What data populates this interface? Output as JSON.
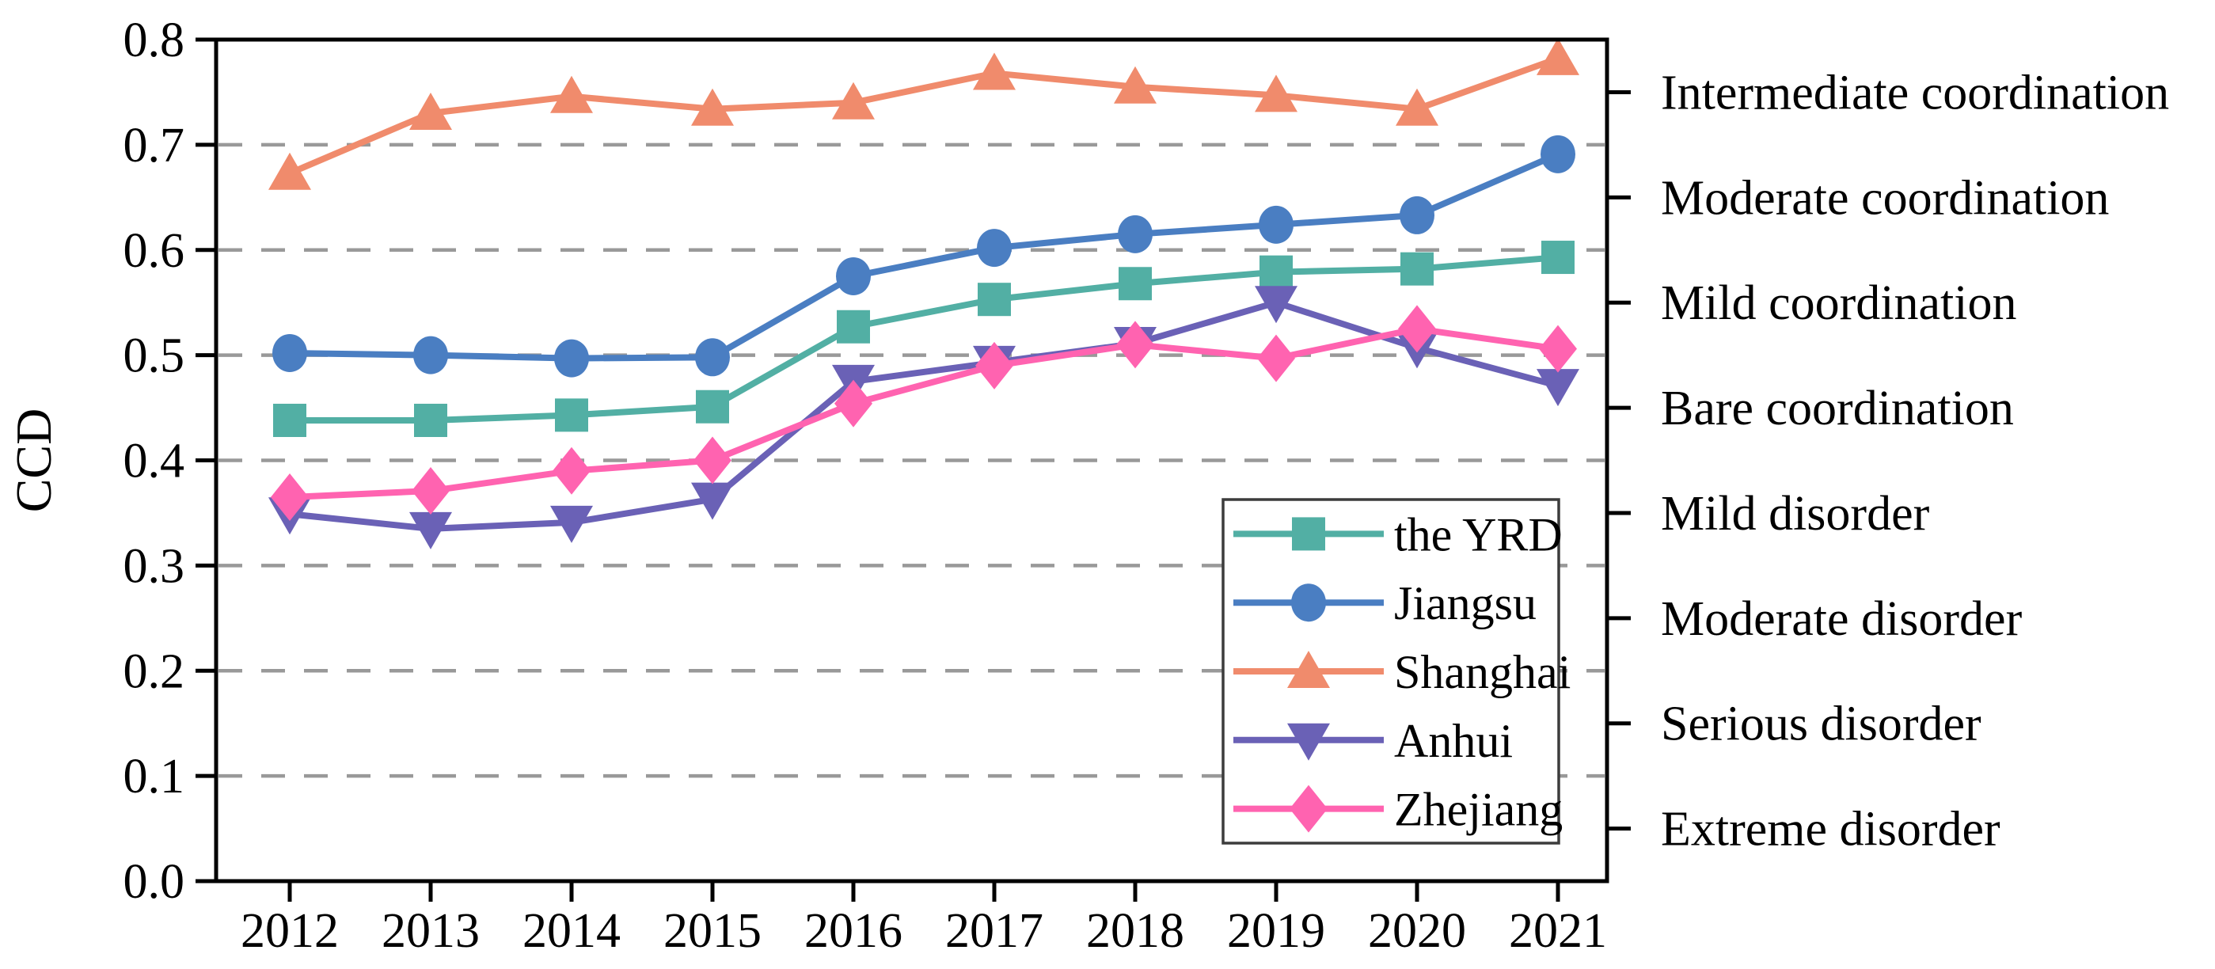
{
  "page": {
    "background": "#ffffff"
  },
  "colors": {
    "axis": "#000000",
    "grid": "#999999",
    "legend_border": "#3c3c3c",
    "yrd": "#52afa4",
    "jiangsu": "#4a7ec2",
    "shanghai": "#f08b6c",
    "anhui": "#6a61b6",
    "zhejiang": "#ff63b0"
  },
  "chart_data": {
    "type": "line",
    "title": "",
    "xlabel": "",
    "ylabel": "CCD",
    "x": [
      2012,
      2013,
      2014,
      2015,
      2016,
      2017,
      2018,
      2019,
      2020,
      2021
    ],
    "x_tick_labels": [
      "2012",
      "2013",
      "2014",
      "2015",
      "2016",
      "2017",
      "2018",
      "2019",
      "2020",
      "2021"
    ],
    "ylim": [
      0.0,
      0.8
    ],
    "y_ticks": [
      0.0,
      0.1,
      0.2,
      0.3,
      0.4,
      0.5,
      0.6,
      0.7,
      0.8
    ],
    "y_tick_labels": [
      "0.0",
      "0.1",
      "0.2",
      "0.3",
      "0.4",
      "0.5",
      "0.6",
      "0.7",
      "0.8"
    ],
    "grid": {
      "horizontal": true,
      "style": "dashed",
      "color": "#999999",
      "at": [
        0.1,
        0.2,
        0.3,
        0.4,
        0.5,
        0.6,
        0.7
      ]
    },
    "legend_position": "inside lower right",
    "series": [
      {
        "name": "the YRD",
        "marker": "square",
        "color": "#52afa4",
        "values": [
          0.438,
          0.438,
          0.443,
          0.451,
          0.527,
          0.553,
          0.568,
          0.579,
          0.582,
          0.593
        ]
      },
      {
        "name": "Jiangsu",
        "marker": "circle",
        "color": "#4a7ec2",
        "values": [
          0.502,
          0.5,
          0.497,
          0.498,
          0.575,
          0.602,
          0.615,
          0.624,
          0.633,
          0.691
        ]
      },
      {
        "name": "Shanghai",
        "marker": "triangle-up",
        "color": "#f08b6c",
        "values": [
          0.673,
          0.73,
          0.746,
          0.734,
          0.74,
          0.768,
          0.755,
          0.747,
          0.734,
          0.782
        ]
      },
      {
        "name": "Anhui",
        "marker": "triangle-down",
        "color": "#6a61b6",
        "values": [
          0.349,
          0.335,
          0.341,
          0.363,
          0.475,
          0.493,
          0.511,
          0.55,
          0.507,
          0.471
        ]
      },
      {
        "name": "Zhejiang",
        "marker": "diamond",
        "color": "#ff63b0",
        "values": [
          0.365,
          0.371,
          0.39,
          0.4,
          0.454,
          0.49,
          0.51,
          0.497,
          0.525,
          0.506
        ]
      }
    ],
    "right_axis_labels": [
      {
        "text": "Intermediate coordination",
        "value": 0.75
      },
      {
        "text": "Moderate coordination",
        "value": 0.65
      },
      {
        "text": "Mild coordination",
        "value": 0.55
      },
      {
        "text": "Bare coordination",
        "value": 0.45
      },
      {
        "text": "Mild disorder",
        "value": 0.35
      },
      {
        "text": "Moderate disorder",
        "value": 0.25
      },
      {
        "text": "Serious disorder",
        "value": 0.15
      },
      {
        "text": "Extreme disorder",
        "value": 0.05
      }
    ]
  }
}
